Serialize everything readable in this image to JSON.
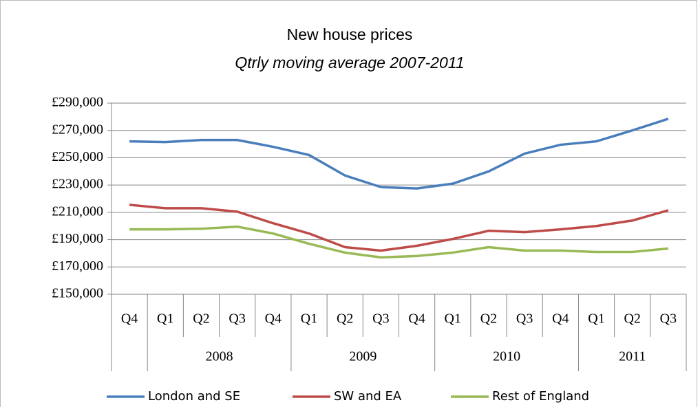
{
  "chart_data": {
    "type": "line",
    "title": "New house prices",
    "subtitle": "Qtrly moving average 2007-2011",
    "categories": [
      "Q4",
      "Q1",
      "Q2",
      "Q3",
      "Q4",
      "Q1",
      "Q2",
      "Q3",
      "Q4",
      "Q1",
      "Q2",
      "Q3",
      "Q4",
      "Q1",
      "Q2",
      "Q3"
    ],
    "category_years": [
      null,
      "2008",
      "2008",
      "2008",
      "2008",
      "2009",
      "2009",
      "2009",
      "2009",
      "2010",
      "2010",
      "2010",
      "2010",
      "2011",
      "2011",
      "2011"
    ],
    "series": [
      {
        "name": "London and SE",
        "color": "#4a7ebb",
        "values": [
          262000,
          261500,
          263000,
          263000,
          258000,
          252000,
          237000,
          228500,
          227500,
          231000,
          240000,
          253000,
          259500,
          262000,
          270000,
          278500
        ]
      },
      {
        "name": "SW and EA",
        "color": "#be4b48",
        "values": [
          215500,
          213000,
          213000,
          210500,
          202000,
          194500,
          184500,
          182000,
          185500,
          190500,
          196500,
          195500,
          197500,
          200000,
          204000,
          211500
        ]
      },
      {
        "name": "Rest of England",
        "color": "#98b954",
        "values": [
          197500,
          197500,
          198000,
          199500,
          194500,
          187000,
          180500,
          177000,
          178000,
          180500,
          184500,
          182000,
          182000,
          181000,
          181000,
          183500
        ]
      }
    ],
    "ylim": [
      150000,
      290000
    ],
    "yticks": [
      {
        "value": 150000,
        "label": "£150,000"
      },
      {
        "value": 170000,
        "label": "£170,000"
      },
      {
        "value": 190000,
        "label": "£190,000"
      },
      {
        "value": 210000,
        "label": "£210,000"
      },
      {
        "value": 230000,
        "label": "£230,000"
      },
      {
        "value": 250000,
        "label": "£250,000"
      },
      {
        "value": 270000,
        "label": "£270,000"
      },
      {
        "value": 290000,
        "label": "£290,000"
      }
    ],
    "grid": true,
    "legend": "bottom"
  }
}
